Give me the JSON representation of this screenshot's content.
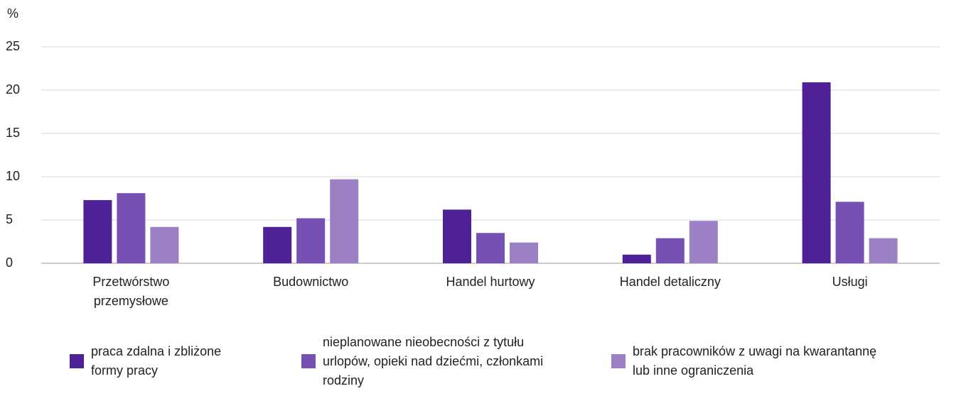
{
  "chart_data": {
    "type": "bar",
    "ylabel": "%",
    "categories": [
      "Przetwórstwo przemysłowe",
      "Budownictwo",
      "Handel hurtowy",
      "Handel detaliczny",
      "Usługi"
    ],
    "series": [
      {
        "name": "praca zdalna i zbliżone formy pracy",
        "color": "#4f2196",
        "values": [
          7.3,
          4.2,
          6.2,
          1.0,
          20.9
        ]
      },
      {
        "name": "nieplanowane nieobecności z tytułu urlopów, opieki nad dziećmi, członkami rodziny",
        "color": "#7651b3",
        "values": [
          8.1,
          5.2,
          3.5,
          2.9,
          7.1
        ]
      },
      {
        "name": "brak pracowników z uwagi na kwarantannę lub inne ograniczenia",
        "color": "#9b80c4",
        "values": [
          4.2,
          9.7,
          2.4,
          4.9,
          2.9
        ]
      }
    ],
    "ylim": [
      0,
      25
    ],
    "yticks": [
      0,
      5,
      10,
      15,
      20,
      25
    ],
    "grid": true,
    "legend": "bottom"
  }
}
